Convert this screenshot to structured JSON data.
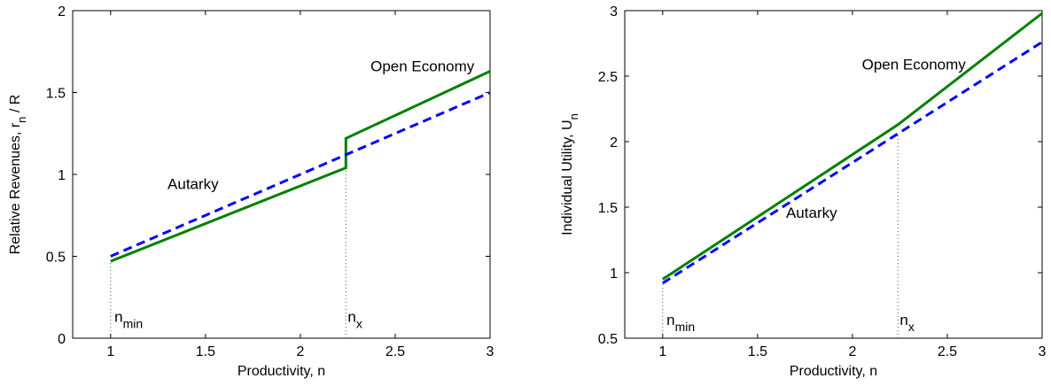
{
  "chart_data": [
    {
      "type": "line",
      "xlabel": "Productivity, n",
      "ylabel": "Relative Revenues,  r",
      "ylabel_sub": "n",
      "ylabel_tail": " / R",
      "xlim": [
        0.8,
        3
      ],
      "ylim": [
        0,
        2
      ],
      "xticks": [
        1,
        1.5,
        2,
        2.5,
        3
      ],
      "xtick_labels": [
        "1",
        "1.5",
        "2",
        "2.5",
        "3"
      ],
      "yticks": [
        0,
        0.5,
        1,
        1.5,
        2
      ],
      "ytick_labels": [
        "0",
        "0.5",
        "1",
        "1.5",
        "2"
      ],
      "grid": false,
      "series": [
        {
          "color": "#007f00",
          "style": "solid",
          "x": [
            1,
            2.24,
            2.24,
            3
          ],
          "y": [
            0.47,
            1.04,
            1.22,
            1.63
          ]
        },
        {
          "color": "#0000ff",
          "style": "dashed",
          "x": [
            1,
            3
          ],
          "y": [
            0.5,
            1.5
          ]
        }
      ],
      "vlines": [
        {
          "x": 1,
          "y_top": 0.47
        },
        {
          "x": 2.24,
          "y_top": 1.04
        }
      ],
      "annotations": [
        {
          "text": "Open Economy",
          "x": 2.37,
          "y": 1.63
        },
        {
          "text": "Autarky",
          "x": 1.3,
          "y": 0.91
        },
        {
          "text": "n",
          "sub": "min",
          "x": 1.02,
          "y": 0.1
        },
        {
          "text": "n",
          "sub": "x",
          "x": 2.25,
          "y": 0.1
        }
      ]
    },
    {
      "type": "line",
      "xlabel": "Productivity, n",
      "ylabel": "Individual Utility, U",
      "ylabel_sub": "n",
      "ylabel_tail": "",
      "xlim": [
        0.8,
        3
      ],
      "ylim": [
        0.5,
        3
      ],
      "xticks": [
        1,
        1.5,
        2,
        2.5,
        3
      ],
      "xtick_labels": [
        "1",
        "1.5",
        "2",
        "2.5",
        "3"
      ],
      "yticks": [
        0.5,
        1,
        1.5,
        2,
        2.5,
        3
      ],
      "ytick_labels": [
        "0.5",
        "1",
        "1.5",
        "2",
        "2.5",
        "3"
      ],
      "grid": false,
      "series": [
        {
          "color": "#007f00",
          "style": "solid",
          "x": [
            1,
            2.24,
            3
          ],
          "y": [
            0.95,
            2.13,
            2.98
          ]
        },
        {
          "color": "#0000ff",
          "style": "dashed",
          "x": [
            1,
            3
          ],
          "y": [
            0.92,
            2.76
          ]
        }
      ],
      "vlines": [
        {
          "x": 1,
          "y_top": 0.92
        },
        {
          "x": 2.24,
          "y_top": 2.06
        }
      ],
      "annotations": [
        {
          "text": "Open Economy",
          "x": 2.05,
          "y": 2.55
        },
        {
          "text": "Autarky",
          "x": 1.65,
          "y": 1.42
        },
        {
          "text": "n",
          "sub": "min",
          "x": 1.02,
          "y": 0.6
        },
        {
          "text": "n",
          "sub": "x",
          "x": 2.25,
          "y": 0.6
        }
      ]
    }
  ]
}
